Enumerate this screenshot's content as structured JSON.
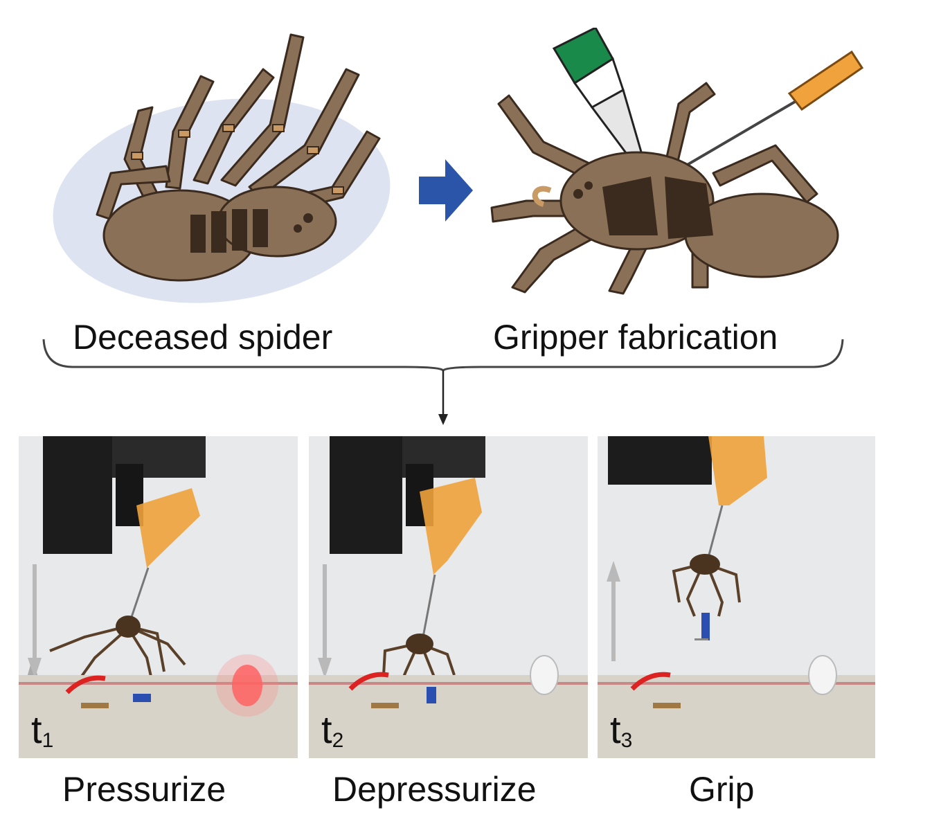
{
  "top": {
    "left_caption": "Deceased spider",
    "right_caption": "Gripper fabrication"
  },
  "panels": [
    {
      "t": "t",
      "sub": "1",
      "caption": "Pressurize",
      "led": "on"
    },
    {
      "t": "t",
      "sub": "2",
      "caption": "Depressurize",
      "led": "off"
    },
    {
      "t": "t",
      "sub": "3",
      "caption": "Grip",
      "led": "off"
    }
  ],
  "colors": {
    "spider_body": "#8a7056",
    "spider_dark": "#3b2a1e",
    "spider_joint": "#c99a63",
    "shadow": "#dde3f0",
    "arrow_blue": "#2b55a8",
    "needle_orange": "#f0a23c",
    "nozzle_green": "#1a8a4a",
    "led_red": "#ff5a5a"
  }
}
